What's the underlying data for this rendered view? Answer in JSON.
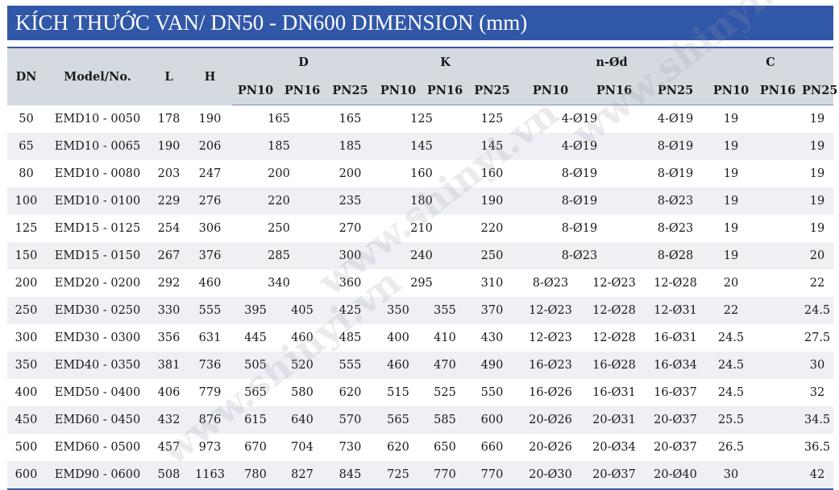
{
  "title": "KÍCH THƯỚC VAN/ DN50 - DN600 DIMENSION (mm)",
  "watermark": "www.shinyi.vn",
  "header": {
    "dn": "DN",
    "model": "Model/No.",
    "l": "L",
    "h": "H",
    "d": "D",
    "k": "K",
    "nod": "n-Ød",
    "c": "C",
    "pn10": "PN10",
    "pn16": "PN16",
    "pn25": "PN25"
  },
  "rows": [
    {
      "dn": "50",
      "model": "EMD10 - 0050",
      "l": "178",
      "h": "190",
      "d_pn10": "165",
      "d_pn16": "",
      "d_pn25": "165",
      "k_pn10": "125",
      "k_pn16": "",
      "k_pn25": "125",
      "nod_pn10": "4-Ø19",
      "nod_pn16": "",
      "nod_pn25": "4-Ø19",
      "c_pn10": "19",
      "c_pn16": "",
      "c_pn25": "19"
    },
    {
      "dn": "65",
      "model": "EMD10 - 0065",
      "l": "190",
      "h": "206",
      "d_pn10": "185",
      "d_pn16": "",
      "d_pn25": "185",
      "k_pn10": "145",
      "k_pn16": "",
      "k_pn25": "145",
      "nod_pn10": "4-Ø19",
      "nod_pn16": "",
      "nod_pn25": "8-Ø19",
      "c_pn10": "19",
      "c_pn16": "",
      "c_pn25": "19"
    },
    {
      "dn": "80",
      "model": "EMD10 - 0080",
      "l": "203",
      "h": "247",
      "d_pn10": "200",
      "d_pn16": "",
      "d_pn25": "200",
      "k_pn10": "160",
      "k_pn16": "",
      "k_pn25": "160",
      "nod_pn10": "8-Ø19",
      "nod_pn16": "",
      "nod_pn25": "8-Ø19",
      "c_pn10": "19",
      "c_pn16": "",
      "c_pn25": "19"
    },
    {
      "dn": "100",
      "model": "EMD10 - 0100",
      "l": "229",
      "h": "276",
      "d_pn10": "220",
      "d_pn16": "",
      "d_pn25": "235",
      "k_pn10": "180",
      "k_pn16": "",
      "k_pn25": "190",
      "nod_pn10": "8-Ø19",
      "nod_pn16": "",
      "nod_pn25": "8-Ø23",
      "c_pn10": "19",
      "c_pn16": "",
      "c_pn25": "19"
    },
    {
      "dn": "125",
      "model": "EMD15 - 0125",
      "l": "254",
      "h": "306",
      "d_pn10": "250",
      "d_pn16": "",
      "d_pn25": "270",
      "k_pn10": "210",
      "k_pn16": "",
      "k_pn25": "220",
      "nod_pn10": "8-Ø19",
      "nod_pn16": "",
      "nod_pn25": "8-Ø23",
      "c_pn10": "19",
      "c_pn16": "",
      "c_pn25": "19"
    },
    {
      "dn": "150",
      "model": "EMD15 - 0150",
      "l": "267",
      "h": "376",
      "d_pn10": "285",
      "d_pn16": "",
      "d_pn25": "300",
      "k_pn10": "240",
      "k_pn16": "",
      "k_pn25": "250",
      "nod_pn10": "8-Ø23",
      "nod_pn16": "",
      "nod_pn25": "8-Ø28",
      "c_pn10": "19",
      "c_pn16": "",
      "c_pn25": "20"
    },
    {
      "dn": "200",
      "model": "EMD20 - 0200",
      "l": "292",
      "h": "460",
      "d_pn10": "340",
      "d_pn16": "",
      "d_pn25": "360",
      "k_pn10": "295",
      "k_pn16": "",
      "k_pn25": "310",
      "nod_pn10": "8-Ø23",
      "nod_pn16": "12-Ø23",
      "nod_pn25": "12-Ø28",
      "c_pn10": "20",
      "c_pn16": "",
      "c_pn25": "22"
    },
    {
      "dn": "250",
      "model": "EMD30 - 0250",
      "l": "330",
      "h": "555",
      "d_pn10": "395",
      "d_pn16": "405",
      "d_pn25": "425",
      "k_pn10": "350",
      "k_pn16": "355",
      "k_pn25": "370",
      "nod_pn10": "12-Ø23",
      "nod_pn16": "12-Ø28",
      "nod_pn25": "12-Ø31",
      "c_pn10": "22",
      "c_pn16": "",
      "c_pn25": "24.5"
    },
    {
      "dn": "300",
      "model": "EMD30 - 0300",
      "l": "356",
      "h": "631",
      "d_pn10": "445",
      "d_pn16": "460",
      "d_pn25": "485",
      "k_pn10": "400",
      "k_pn16": "410",
      "k_pn25": "430",
      "nod_pn10": "12-Ø23",
      "nod_pn16": "12-Ø28",
      "nod_pn25": "16-Ø31",
      "c_pn10": "24.5",
      "c_pn16": "",
      "c_pn25": "27.5"
    },
    {
      "dn": "350",
      "model": "EMD40 - 0350",
      "l": "381",
      "h": "736",
      "d_pn10": "505",
      "d_pn16": "520",
      "d_pn25": "555",
      "k_pn10": "460",
      "k_pn16": "470",
      "k_pn25": "490",
      "nod_pn10": "16-Ø23",
      "nod_pn16": "16-Ø28",
      "nod_pn25": "16-Ø34",
      "c_pn10": "24.5",
      "c_pn16": "",
      "c_pn25": "30"
    },
    {
      "dn": "400",
      "model": "EMD50 - 0400",
      "l": "406",
      "h": "779",
      "d_pn10": "565",
      "d_pn16": "580",
      "d_pn25": "620",
      "k_pn10": "515",
      "k_pn16": "525",
      "k_pn25": "550",
      "nod_pn10": "16-Ø26",
      "nod_pn16": "16-Ø31",
      "nod_pn25": "16-Ø37",
      "c_pn10": "24.5",
      "c_pn16": "",
      "c_pn25": "32"
    },
    {
      "dn": "450",
      "model": "EMD60 - 0450",
      "l": "432",
      "h": "876",
      "d_pn10": "615",
      "d_pn16": "640",
      "d_pn25": "570",
      "k_pn10": "565",
      "k_pn16": "585",
      "k_pn25": "600",
      "nod_pn10": "20-Ø26",
      "nod_pn16": "20-Ø31",
      "nod_pn25": "20-Ø37",
      "c_pn10": "25.5",
      "c_pn16": "",
      "c_pn25": "34.5"
    },
    {
      "dn": "500",
      "model": "EMD60 - 0500",
      "l": "457",
      "h": "973",
      "d_pn10": "670",
      "d_pn16": "704",
      "d_pn25": "730",
      "k_pn10": "620",
      "k_pn16": "650",
      "k_pn25": "660",
      "nod_pn10": "20-Ø26",
      "nod_pn16": "20-Ø34",
      "nod_pn25": "20-Ø37",
      "c_pn10": "26.5",
      "c_pn16": "",
      "c_pn25": "36.5"
    },
    {
      "dn": "600",
      "model": "EMD90 - 0600",
      "l": "508",
      "h": "1163",
      "d_pn10": "780",
      "d_pn16": "827",
      "d_pn25": "845",
      "k_pn10": "725",
      "k_pn16": "770",
      "k_pn25": "770",
      "nod_pn10": "20-Ø30",
      "nod_pn16": "20-Ø37",
      "nod_pn25": "20-Ø40",
      "c_pn10": "30",
      "c_pn16": "",
      "c_pn25": "42"
    }
  ]
}
